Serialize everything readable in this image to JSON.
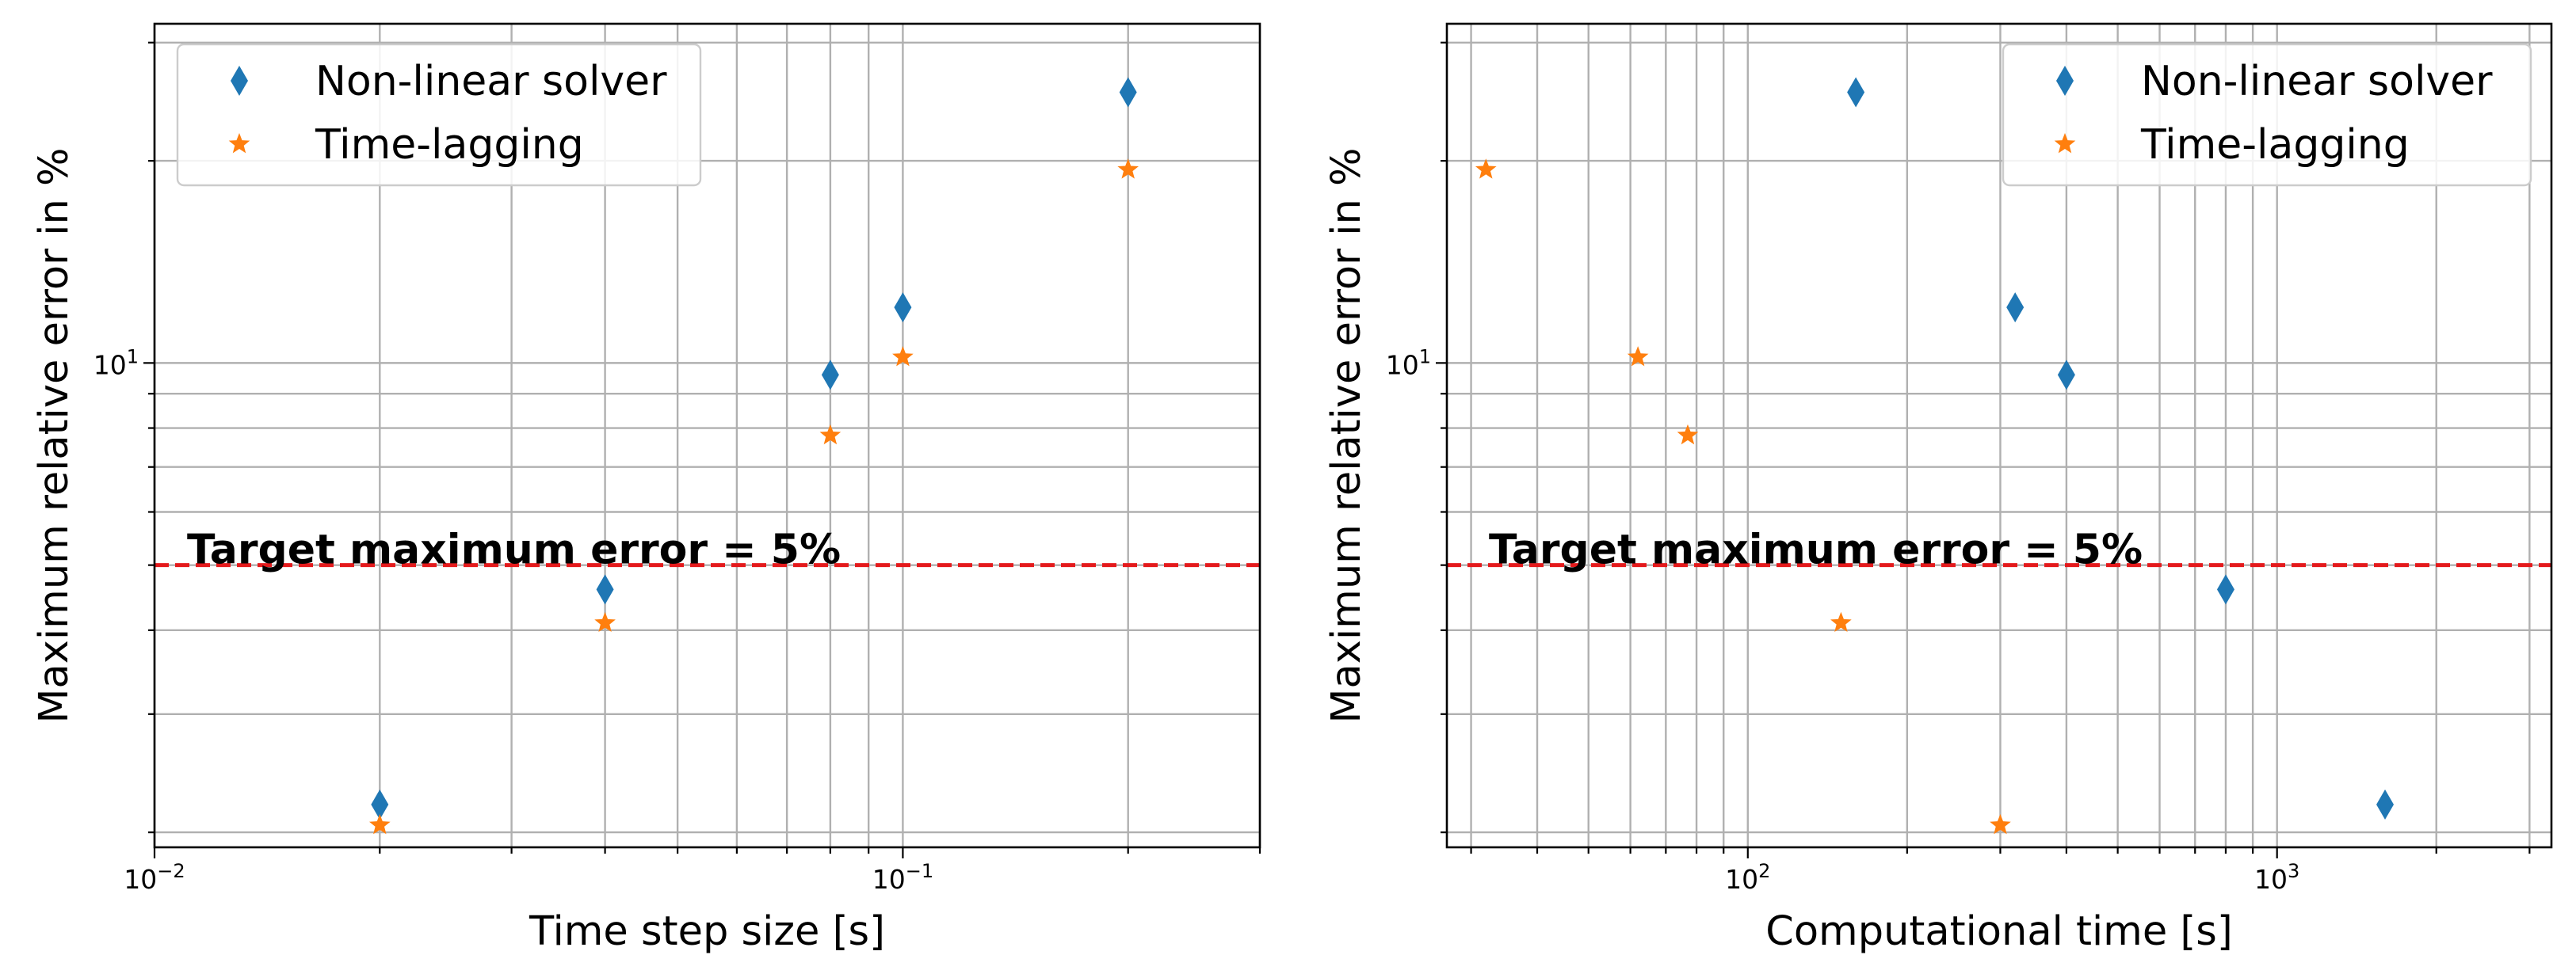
{
  "chart_data": [
    {
      "type": "scatter",
      "xlabel": "Time step size [s]",
      "ylabel": "Maximum relative error in %",
      "xscale": "log",
      "yscale": "log",
      "xlim": [
        0.01,
        0.3
      ],
      "ylim": [
        1.9,
        32
      ],
      "grid": "on (major and minor)",
      "legend_position": "upper-left",
      "x_ticks": [
        {
          "value": 0.01,
          "base": "10",
          "exp": "−2"
        },
        {
          "value": 0.1,
          "base": "10",
          "exp": "−1"
        }
      ],
      "y_ticks": [
        {
          "value": 10,
          "base": "10",
          "exp": "1"
        }
      ],
      "series": [
        {
          "name": "Non-linear solver",
          "marker": "diamond",
          "color": "#1f77b4",
          "x": [
            0.02,
            0.04,
            0.08,
            0.1,
            0.2
          ],
          "y": [
            2.2,
            4.6,
            9.6,
            12.1,
            25.3
          ]
        },
        {
          "name": "Time-lagging",
          "marker": "star",
          "color": "#ff7f0e",
          "x": [
            0.02,
            0.04,
            0.08,
            0.1,
            0.2
          ],
          "y": [
            2.05,
            4.1,
            7.8,
            10.2,
            19.4
          ]
        }
      ],
      "reference_line": {
        "y": 5,
        "color": "#e41a1c",
        "style": "dashed",
        "label": "Target maximum error = 5%"
      }
    },
    {
      "type": "scatter",
      "xlabel": "Computational time [s]",
      "ylabel": "Maximum relative error in %",
      "xscale": "log",
      "yscale": "log",
      "xlim": [
        27,
        3300
      ],
      "ylim": [
        1.9,
        32
      ],
      "grid": "on (major and minor)",
      "legend_position": "upper-right",
      "x_ticks": [
        {
          "value": 100,
          "base": "10",
          "exp": "2"
        },
        {
          "value": 1000,
          "base": "10",
          "exp": "3"
        }
      ],
      "y_ticks": [
        {
          "value": 10,
          "base": "10",
          "exp": "1"
        }
      ],
      "series": [
        {
          "name": "Non-linear solver",
          "marker": "diamond",
          "color": "#1f77b4",
          "x": [
            160,
            320,
            400,
            800,
            1600
          ],
          "y": [
            25.3,
            12.1,
            9.6,
            4.6,
            2.2
          ]
        },
        {
          "name": "Time-lagging",
          "marker": "star",
          "color": "#ff7f0e",
          "x": [
            32,
            62,
            77,
            150,
            300
          ],
          "y": [
            19.4,
            10.2,
            7.8,
            4.1,
            2.05
          ]
        }
      ],
      "reference_line": {
        "y": 5,
        "color": "#e41a1c",
        "style": "dashed",
        "label": "Target maximum error = 5%"
      }
    }
  ]
}
